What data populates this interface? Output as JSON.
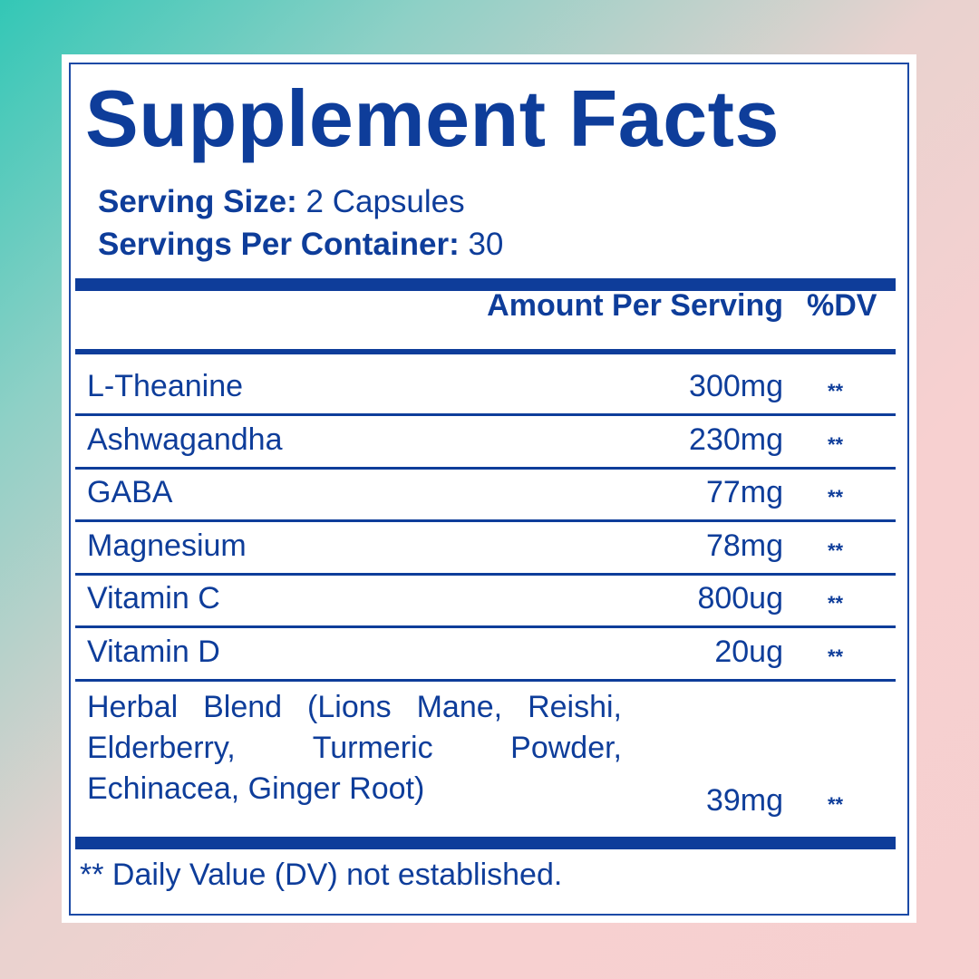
{
  "title": "Supplement Facts",
  "serving_size": {
    "label": "Serving Size:",
    "value": "2 Capsules"
  },
  "servings_per_container": {
    "label": "Servings Per Container:",
    "value": "30"
  },
  "header": {
    "amount": "Amount Per Serving",
    "dv": "%DV"
  },
  "rows": [
    {
      "name": "L-Theanine",
      "amount": "300mg",
      "dv": "**"
    },
    {
      "name": "Ashwagandha",
      "amount": "230mg",
      "dv": "**"
    },
    {
      "name": "GABA",
      "amount": "77mg",
      "dv": "**"
    },
    {
      "name": "Magnesium",
      "amount": "78mg",
      "dv": "**"
    },
    {
      "name": "Vitamin C",
      "amount": "800ug",
      "dv": "**"
    },
    {
      "name": "Vitamin D",
      "amount": "20ug",
      "dv": "**"
    }
  ],
  "blend": {
    "name": "Herbal Blend  (Lions Mane, Reishi, Elderberry, Turmeric Powder, Echinacea, Ginger Root)",
    "amount": "39mg",
    "dv": "**"
  },
  "footnote": "** Daily Value (DV) not established.",
  "colors": {
    "ink": "#0e3d9a",
    "card": "#ffffff",
    "bg_start": "#33c7b6",
    "bg_end": "#f7d0d0"
  }
}
